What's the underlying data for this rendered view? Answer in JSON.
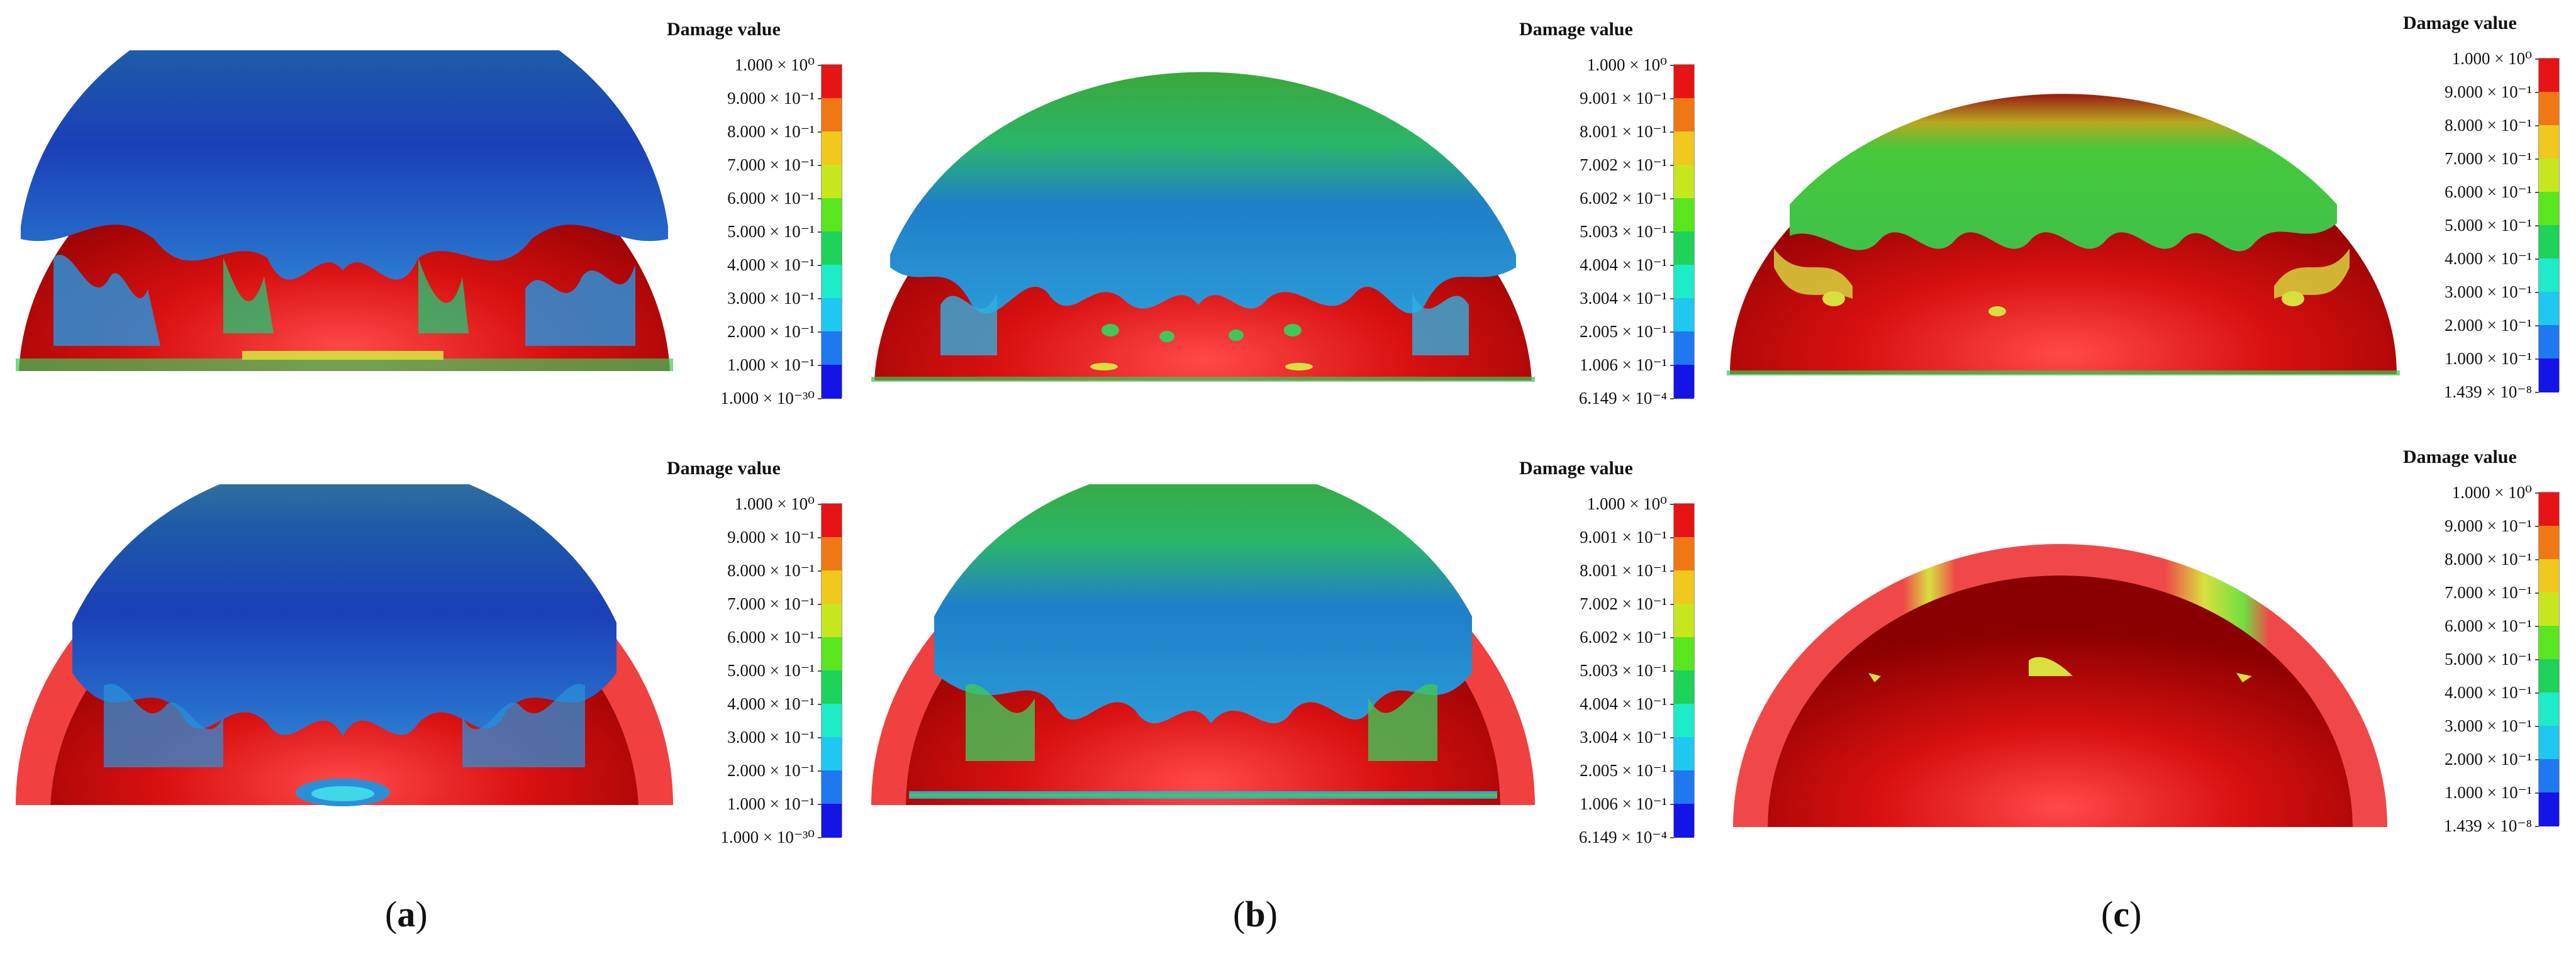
{
  "legend_title": "Damage value",
  "colors": [
    "#1414e6",
    "#1e78f0",
    "#1ec8f0",
    "#1eebc8",
    "#1ed25a",
    "#5ae61e",
    "#c8e61e",
    "#f0c81e",
    "#f07814",
    "#e61414"
  ],
  "columns": [
    {
      "caption_letter": "a",
      "scale": [
        "1.000 × 10⁰",
        "9.000 × 10⁻¹",
        "8.000 × 10⁻¹",
        "7.000 × 10⁻¹",
        "6.000 × 10⁻¹",
        "5.000 × 10⁻¹",
        "4.000 × 10⁻¹",
        "3.000 × 10⁻¹",
        "2.000 × 10⁻¹",
        "1.000 × 10⁻¹",
        "1.000 × 10⁻³⁰"
      ]
    },
    {
      "caption_letter": "b",
      "scale": [
        "1.000 × 10⁰",
        "9.001 × 10⁻¹",
        "8.001 × 10⁻¹",
        "7.002 × 10⁻¹",
        "6.002 × 10⁻¹",
        "5.003 × 10⁻¹",
        "4.004 × 10⁻¹",
        "3.004 × 10⁻¹",
        "2.005 × 10⁻¹",
        "1.006 × 10⁻¹",
        "6.149 × 10⁻⁴"
      ]
    },
    {
      "caption_letter": "c",
      "scale": [
        "1.000 × 10⁰",
        "9.000 × 10⁻¹",
        "8.000 × 10⁻¹",
        "7.000 × 10⁻¹",
        "6.000 × 10⁻¹",
        "5.000 × 10⁻¹",
        "4.000 × 10⁻¹",
        "3.000 × 10⁻¹",
        "2.000 × 10⁻¹",
        "1.000 × 10⁻¹",
        "1.439 × 10⁻⁸"
      ]
    }
  ]
}
